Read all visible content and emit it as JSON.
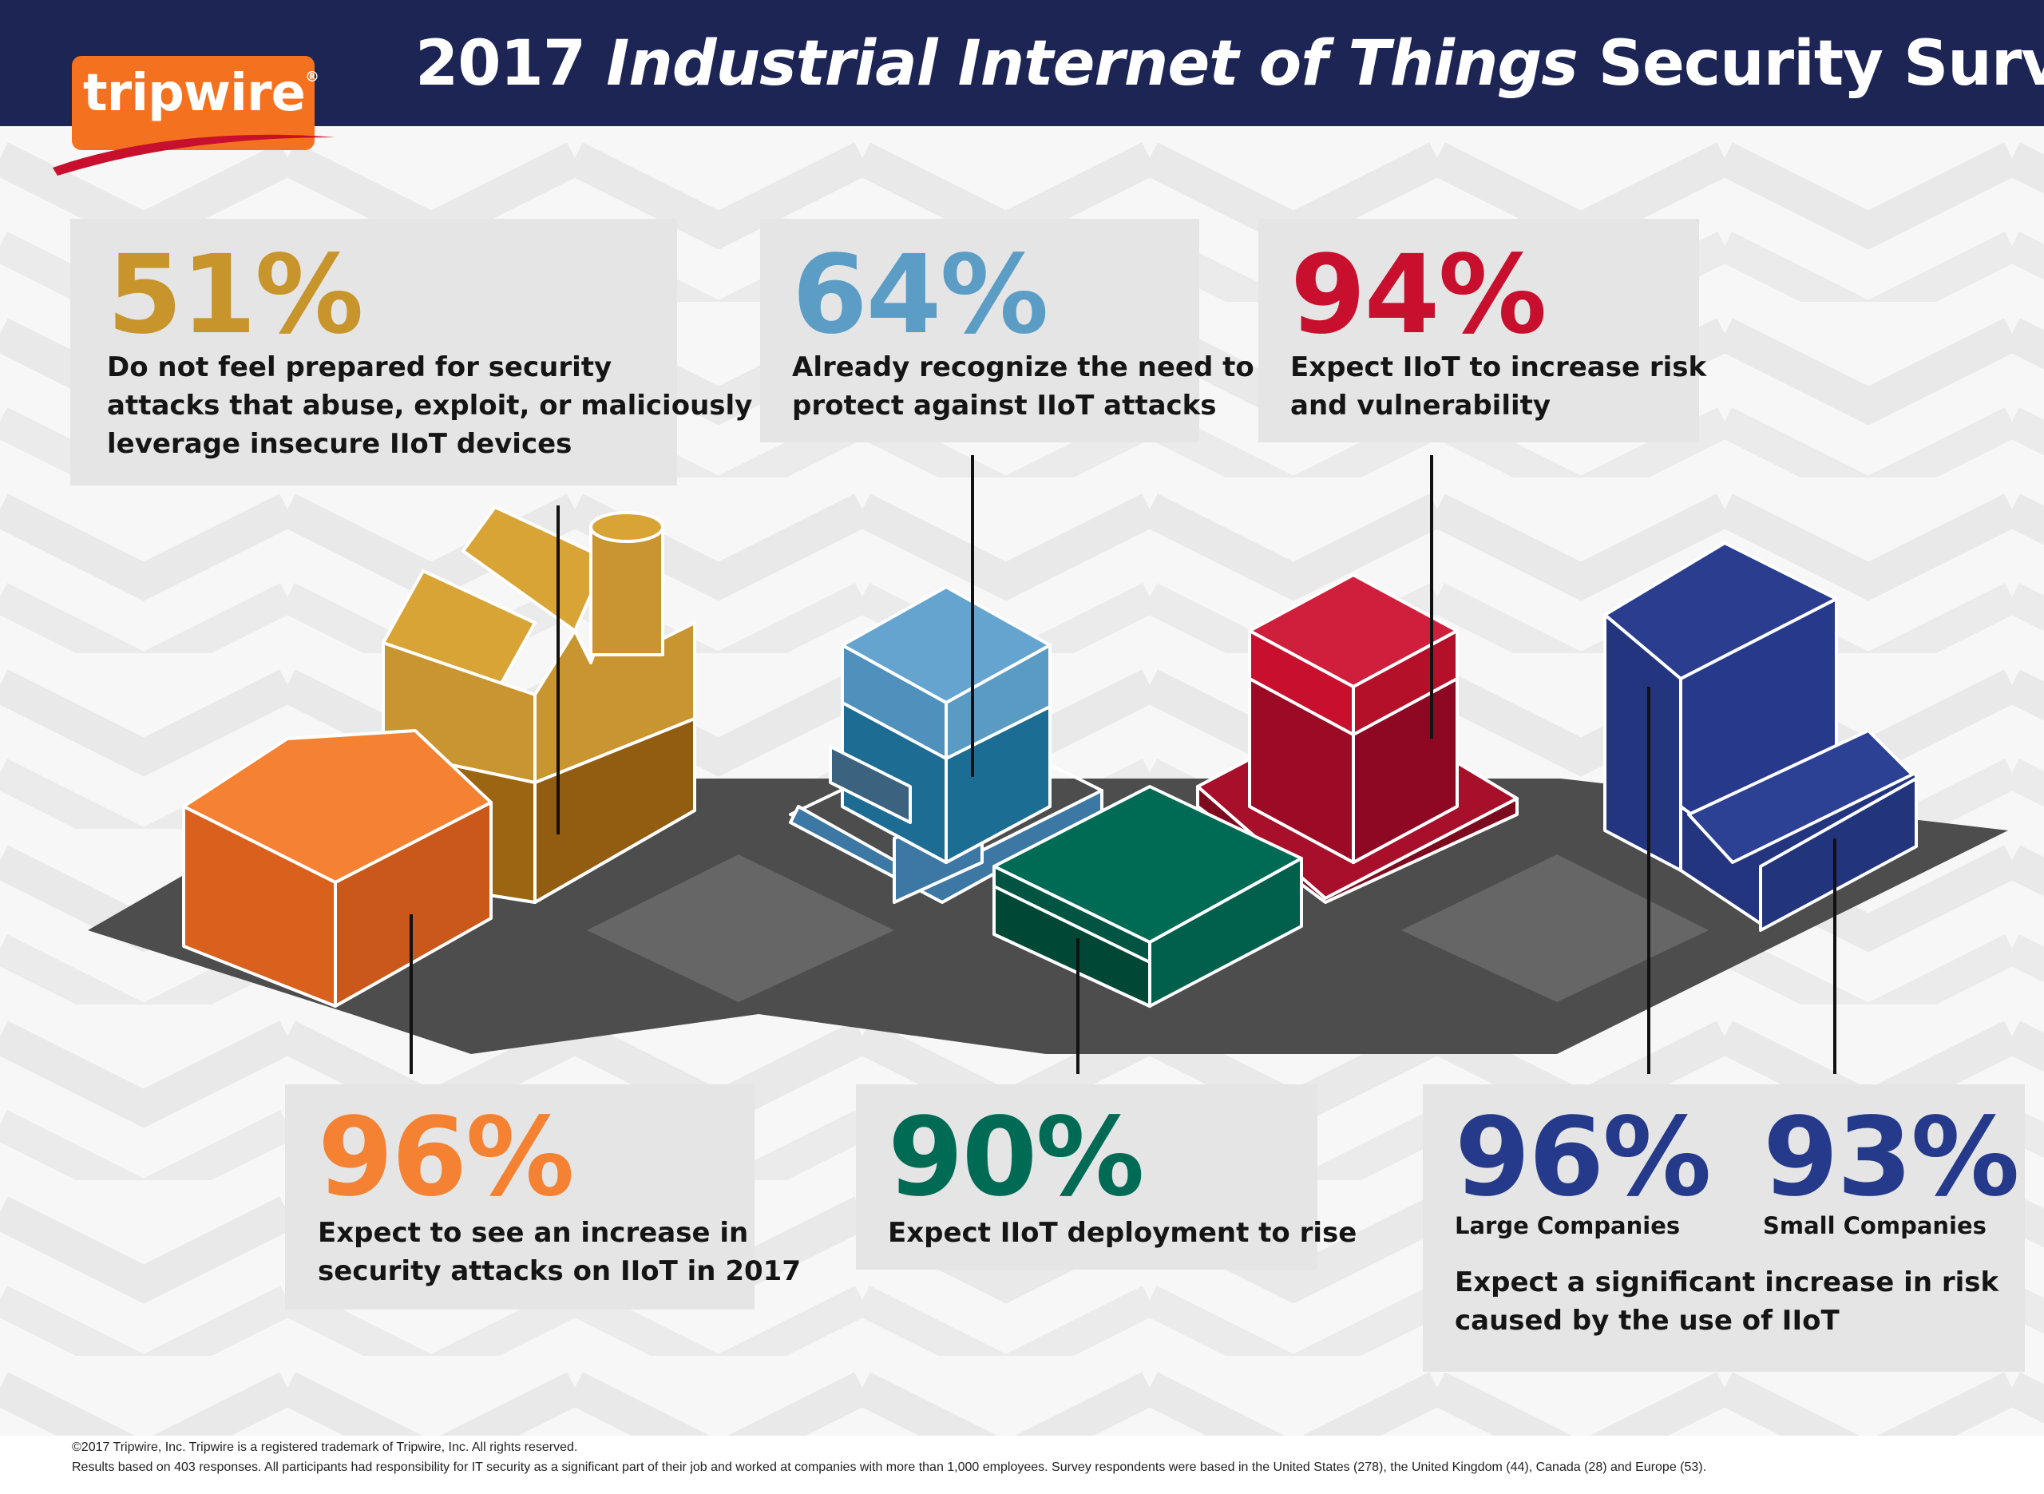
{
  "header": {
    "title_year": "2017",
    "title_italic": "Industrial Internet of Things",
    "title_rest": "Security Survey",
    "logo_text": "tripwire",
    "logo_mark": "®"
  },
  "stats": {
    "prepared": {
      "value": "51%",
      "text_1": "Do not feel prepared for security",
      "text_2": "attacks that abuse, exploit, or maliciously",
      "text_3": "leverage insecure IIoT devices",
      "color": "#c8952c"
    },
    "recognize": {
      "value": "64%",
      "text_1": "Already recognize the need to",
      "text_2": "protect against IIoT attacks",
      "color": "#5c9dc6"
    },
    "risk": {
      "value": "94%",
      "text_1": "Expect IIoT to increase risk",
      "text_2": "and vulnerability",
      "color": "#c8102e"
    },
    "attacks": {
      "value": "96%",
      "text_1": "Expect to see an increase in",
      "text_2": "security attacks on IIoT in 2017",
      "color": "#f58232"
    },
    "deployment": {
      "value": "90%",
      "text_1": "Expect IIoT deployment to rise",
      "color": "#006b54"
    },
    "companies": {
      "large_value": "96%",
      "large_label": "Large Companies",
      "small_value": "93%",
      "small_label": "Small Companies",
      "text_1": "Expect a significant increase in risk",
      "text_2": "caused by the use of IIoT",
      "color": "#253a8a"
    }
  },
  "footer": {
    "line_1": "©2017 Tripwire, Inc. Tripwire is a registered trademark of Tripwire, Inc. All rights reserved.",
    "line_2": "Results based on 403 responses. All participants had responsibility for IT security as a significant part of their job and worked at companies with more than 1,000 employees. Survey respondents were based in the United States (278), the United Kingdom (44), Canada (28) and Europe (53)."
  },
  "colors": {
    "header_bg": "#1c2554",
    "logo_bg": "#f4721f",
    "box_bg": "#e5e5e5",
    "road": "#4d4d4d"
  }
}
